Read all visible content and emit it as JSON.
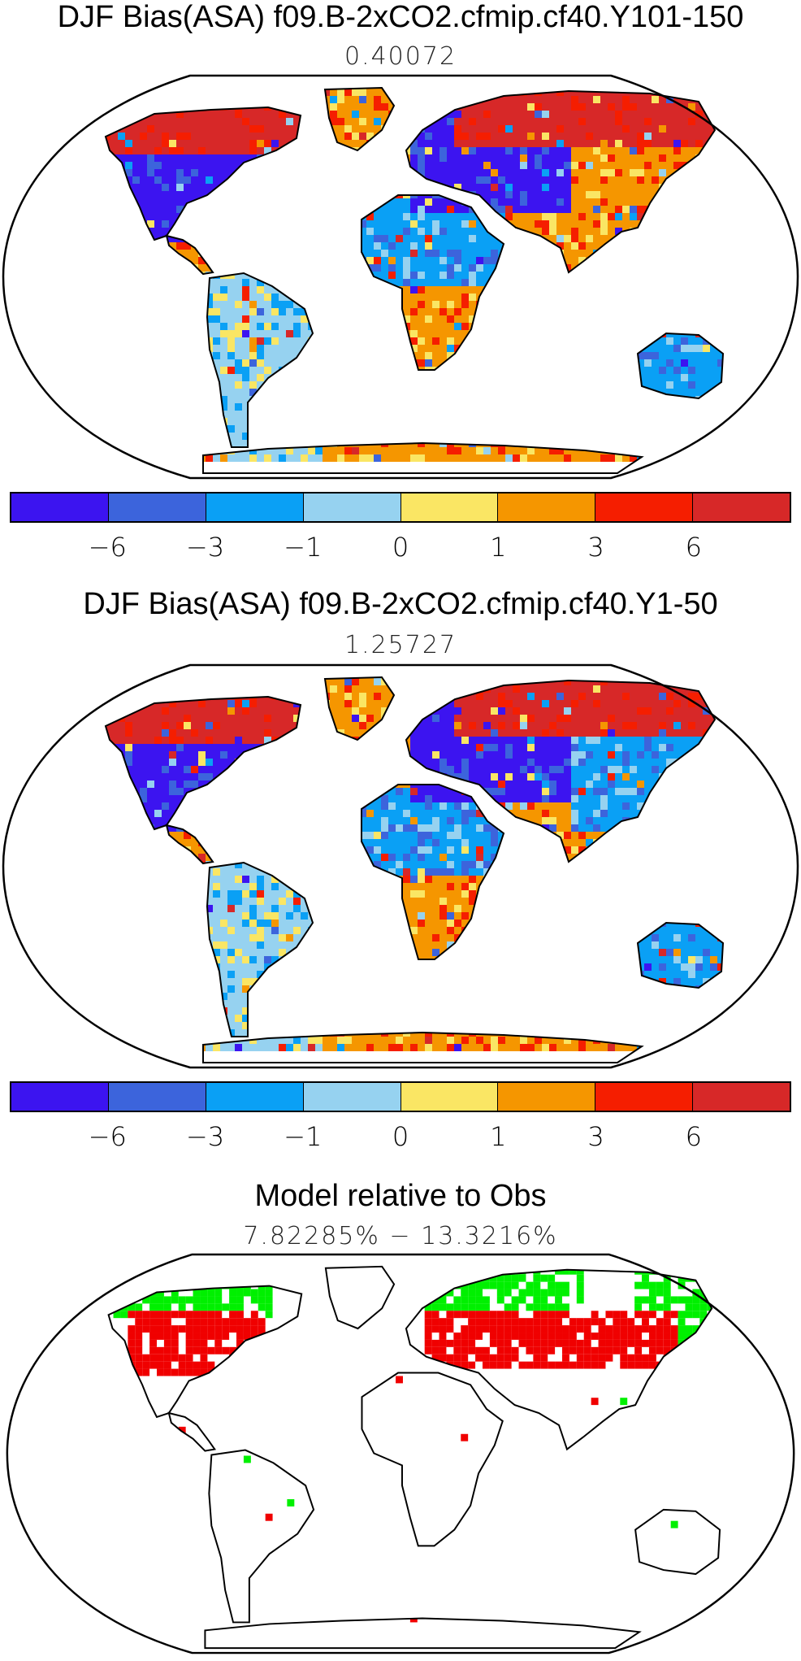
{
  "panels": [
    {
      "title": "DJF Bias(ASA) f09.B-2xCO2.cfmip.cf40.Y101-150",
      "subtitle": "0.40072",
      "kind": "bias",
      "variant": 1
    },
    {
      "title": "DJF Bias(ASA) f09.B-2xCO2.cfmip.cf40.Y1-50",
      "subtitle": "1.25727",
      "kind": "bias",
      "variant": 2
    },
    {
      "title": "Model relative to Obs",
      "subtitle": "7.82285% − 13.3216%",
      "kind": "relative",
      "variant": 3
    }
  ],
  "colorbar": {
    "colors": [
      "#3c14f0",
      "#3c64dc",
      "#0aa0f5",
      "#96d2f0",
      "#fae664",
      "#f59600",
      "#f51e00",
      "#d72828"
    ],
    "tick_labels": [
      "−6",
      "−3",
      "−1",
      "0",
      "1",
      "3",
      "6"
    ]
  },
  "relative_colors": {
    "higher": "#00f000",
    "lower": "#f00000"
  },
  "projection": "Robinson"
}
